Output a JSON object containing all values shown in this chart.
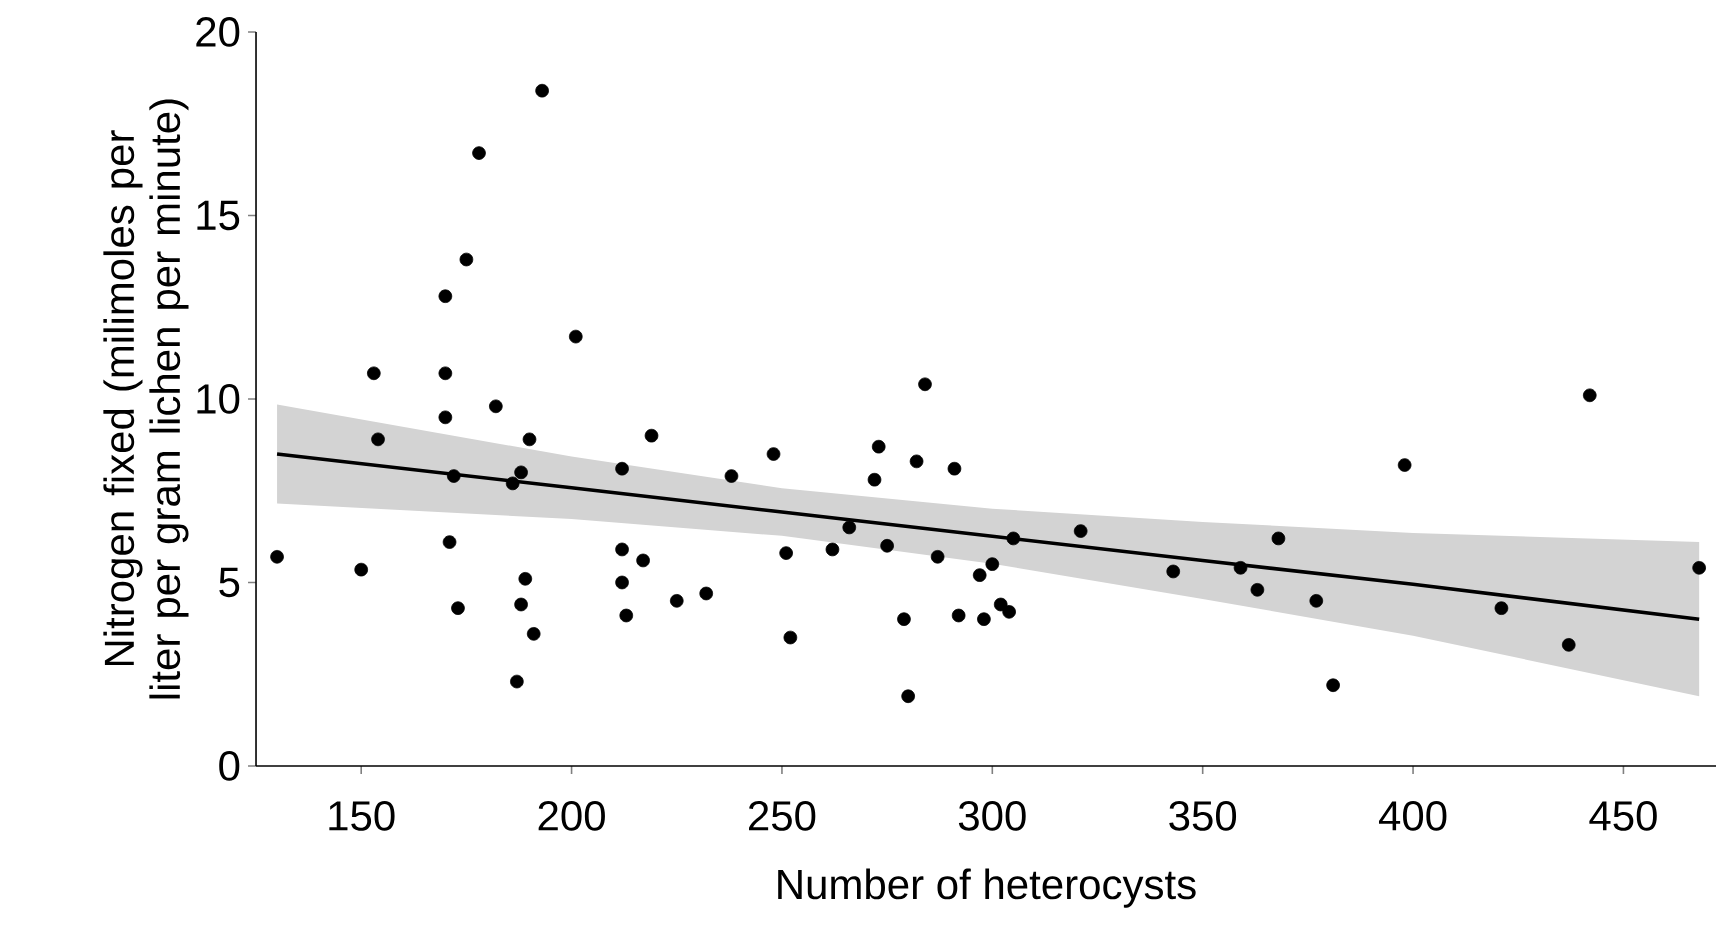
{
  "chart_data": {
    "type": "scatter",
    "xlabel": "Number of heterocysts",
    "ylabel": "Nitrogen fixed (milimoles per liter per  gram lichen per minute)",
    "ylim": [
      0,
      20
    ],
    "xlim": [
      125,
      472
    ],
    "xticks": [
      150,
      200,
      250,
      300,
      350,
      400,
      450
    ],
    "yticks": [
      0,
      5,
      10,
      15,
      20
    ],
    "series": [
      {
        "marker": "circle",
        "color": "#000000",
        "x": [
          130,
          150,
          153,
          154,
          170,
          170,
          170,
          171,
          172,
          173,
          175,
          178,
          182,
          186,
          187,
          188,
          188,
          189,
          190,
          191,
          193,
          201,
          212,
          212,
          212,
          213,
          217,
          219,
          225,
          232,
          238,
          248,
          251,
          252,
          262,
          266,
          272,
          273,
          275,
          279,
          280,
          282,
          284,
          287,
          291,
          292,
          297,
          298,
          300,
          302,
          304,
          305,
          321,
          343,
          359,
          363,
          368,
          377,
          381,
          398,
          421,
          437,
          442,
          468
        ],
        "values": [
          5.7,
          5.35,
          10.7,
          8.9,
          12.8,
          10.7,
          9.5,
          6.1,
          7.9,
          4.3,
          13.8,
          16.7,
          9.8,
          7.7,
          2.3,
          4.4,
          8.0,
          5.1,
          8.9,
          3.6,
          18.4,
          11.7,
          8.1,
          5.9,
          5.0,
          4.1,
          5.6,
          9.0,
          4.5,
          4.7,
          7.9,
          8.5,
          5.8,
          3.5,
          5.9,
          6.5,
          7.8,
          8.7,
          6.0,
          4.0,
          1.9,
          8.3,
          10.4,
          5.7,
          8.1,
          4.1,
          5.2,
          4.0,
          5.5,
          4.4,
          4.2,
          6.2,
          6.4,
          5.3,
          5.4,
          4.8,
          6.2,
          4.5,
          2.2,
          8.2,
          4.3,
          3.3,
          10.1,
          5.4
        ]
      },
      {
        "type": "line",
        "marker": "none",
        "color": "#000000",
        "x": [
          130,
          200,
          250,
          300,
          350,
          400,
          468
        ],
        "values": [
          8.5,
          7.58,
          6.92,
          6.26,
          5.6,
          4.95,
          4.0
        ],
        "lower": [
          7.15,
          6.73,
          6.27,
          5.51,
          4.55,
          3.55,
          1.9
        ],
        "upper": [
          9.85,
          8.43,
          7.57,
          7.01,
          6.65,
          6.35,
          6.1
        ]
      }
    ]
  }
}
